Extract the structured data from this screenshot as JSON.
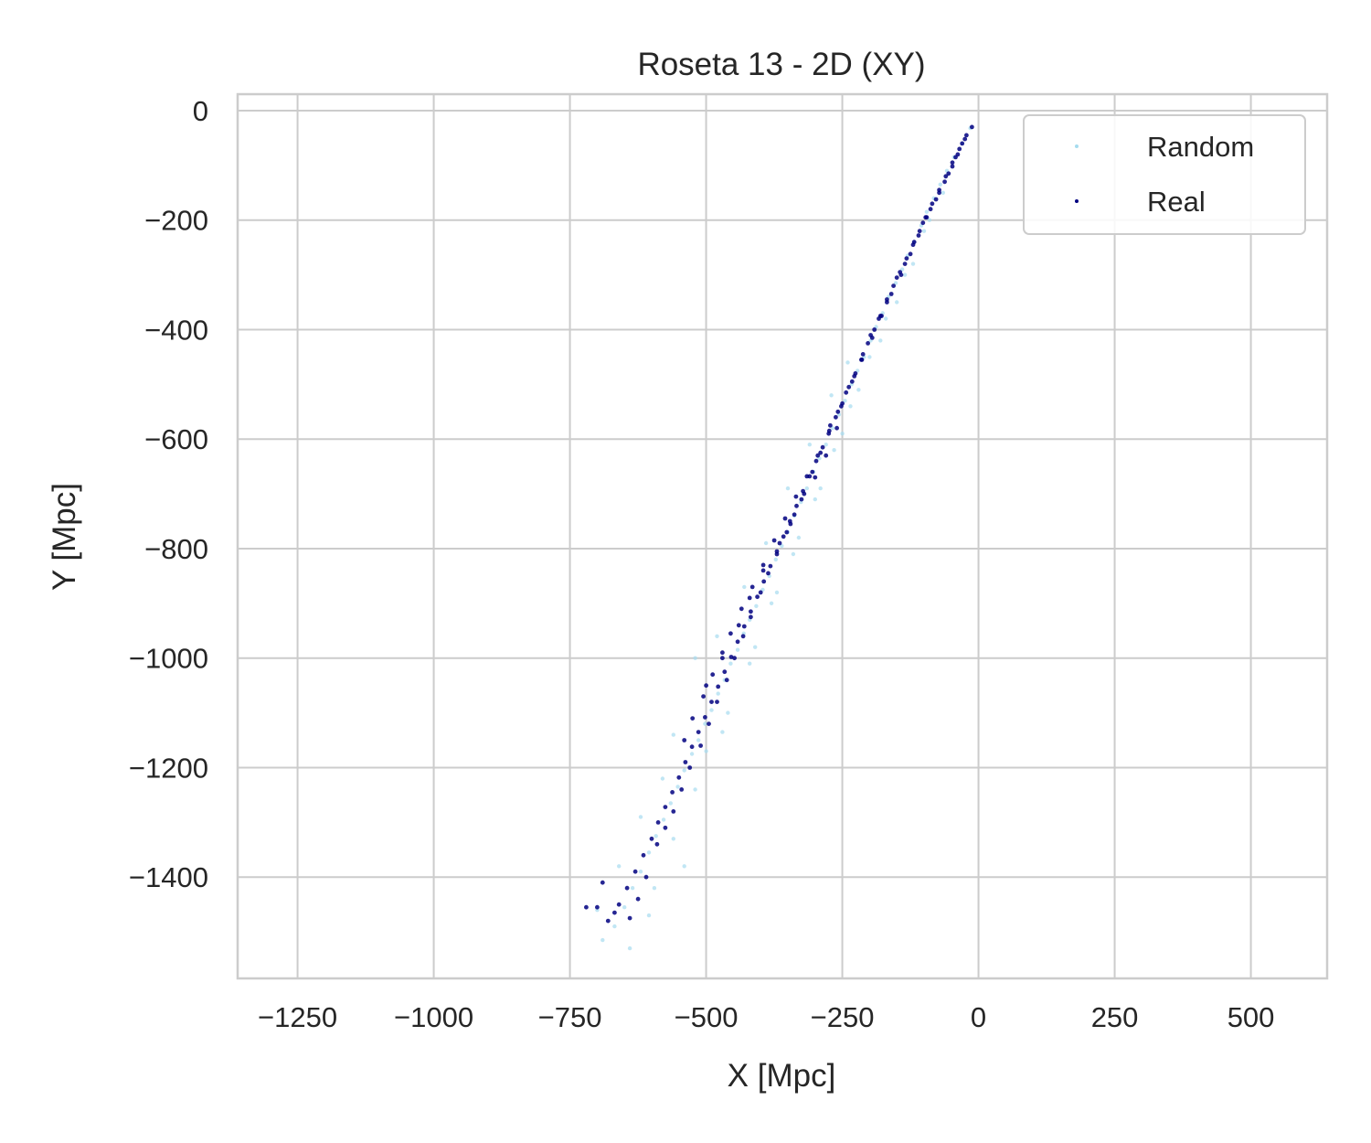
{
  "chart_data": {
    "type": "scatter",
    "title": "Roseta 13 - 2D (XY)",
    "xlabel": "X [Mpc]",
    "ylabel": "Y [Mpc]",
    "xlim": [
      -1360,
      640
    ],
    "ylim": [
      -1585,
      30
    ],
    "xticks": [
      -1250,
      -1000,
      -750,
      -500,
      -250,
      0,
      250,
      500
    ],
    "xtick_labels": [
      "−1250",
      "−1000",
      "−750",
      "−500",
      "−250",
      "0",
      "250",
      "500"
    ],
    "yticks": [
      0,
      -200,
      -400,
      -600,
      -800,
      -1000,
      -1200,
      -1400
    ],
    "ytick_labels": [
      "0",
      "−200",
      "−400",
      "−600",
      "−800",
      "−1000",
      "−1200",
      "−1400"
    ],
    "grid": true,
    "legend_position": "top-right",
    "series": [
      {
        "name": "Random",
        "color": "#a6dcef",
        "points": [
          [
            -15,
            -32
          ],
          [
            -30,
            -60
          ],
          [
            -45,
            -85
          ],
          [
            -58,
            -110
          ],
          [
            -70,
            -135
          ],
          [
            -82,
            -160
          ],
          [
            -95,
            -185
          ],
          [
            -105,
            -210
          ],
          [
            -118,
            -240
          ],
          [
            -130,
            -265
          ],
          [
            -140,
            -290
          ],
          [
            -152,
            -315
          ],
          [
            -165,
            -340
          ],
          [
            -176,
            -370
          ],
          [
            -188,
            -395
          ],
          [
            -198,
            -420
          ],
          [
            -210,
            -450
          ],
          [
            -222,
            -475
          ],
          [
            -233,
            -500
          ],
          [
            -245,
            -530
          ],
          [
            -256,
            -555
          ],
          [
            -268,
            -580
          ],
          [
            -280,
            -610
          ],
          [
            -292,
            -635
          ],
          [
            -303,
            -660
          ],
          [
            -315,
            -690
          ],
          [
            -326,
            -715
          ],
          [
            -338,
            -740
          ],
          [
            -350,
            -770
          ],
          [
            -361,
            -795
          ],
          [
            -372,
            -820
          ],
          [
            -384,
            -850
          ],
          [
            -396,
            -875
          ],
          [
            -408,
            -905
          ],
          [
            -420,
            -930
          ],
          [
            -431,
            -955
          ],
          [
            -442,
            -985
          ],
          [
            -455,
            -1010
          ],
          [
            -466,
            -1040
          ],
          [
            -478,
            -1065
          ],
          [
            -490,
            -1095
          ],
          [
            -502,
            -1120
          ],
          [
            -514,
            -1150
          ],
          [
            -526,
            -1175
          ],
          [
            -540,
            -1205
          ],
          [
            -552,
            -1235
          ],
          [
            -565,
            -1265
          ],
          [
            -578,
            -1295
          ],
          [
            -592,
            -1325
          ],
          [
            -605,
            -1355
          ],
          [
            -620,
            -1390
          ],
          [
            -635,
            -1420
          ],
          [
            -650,
            -1455
          ],
          [
            -668,
            -1490
          ],
          [
            -690,
            -1515
          ],
          [
            -640,
            -1530
          ],
          [
            -605,
            -1470
          ],
          [
            -595,
            -1420
          ],
          [
            -560,
            -1330
          ],
          [
            -520,
            -1240
          ],
          [
            -470,
            -1135
          ],
          [
            -420,
            -1010
          ],
          [
            -380,
            -900
          ],
          [
            -340,
            -810
          ],
          [
            -300,
            -710
          ],
          [
            -265,
            -620
          ],
          [
            -235,
            -540
          ],
          [
            -200,
            -450
          ],
          [
            -170,
            -380
          ],
          [
            -135,
            -300
          ],
          [
            -100,
            -220
          ],
          [
            -65,
            -150
          ],
          [
            -520,
            -1000
          ],
          [
            -480,
            -960
          ],
          [
            -430,
            -870
          ],
          [
            -390,
            -790
          ],
          [
            -350,
            -690
          ],
          [
            -310,
            -610
          ],
          [
            -270,
            -520
          ],
          [
            -240,
            -460
          ],
          [
            -560,
            -1140
          ],
          [
            -580,
            -1220
          ],
          [
            -620,
            -1290
          ],
          [
            -660,
            -1380
          ],
          [
            -700,
            -1460
          ],
          [
            -540,
            -1380
          ],
          [
            -500,
            -1170
          ],
          [
            -460,
            -1100
          ],
          [
            -410,
            -980
          ],
          [
            -370,
            -880
          ],
          [
            -330,
            -780
          ],
          [
            -290,
            -690
          ],
          [
            -250,
            -590
          ],
          [
            -220,
            -510
          ],
          [
            -180,
            -420
          ],
          [
            -150,
            -350
          ],
          [
            -120,
            -280
          ],
          [
            -90,
            -200
          ]
        ]
      },
      {
        "name": "Real",
        "color": "#000080",
        "points": [
          [
            -12,
            -30
          ],
          [
            -22,
            -45
          ],
          [
            -35,
            -70
          ],
          [
            -48,
            -95
          ],
          [
            -60,
            -120
          ],
          [
            -72,
            -145
          ],
          [
            -85,
            -170
          ],
          [
            -97,
            -195
          ],
          [
            -108,
            -220
          ],
          [
            -120,
            -245
          ],
          [
            -132,
            -270
          ],
          [
            -144,
            -295
          ],
          [
            -156,
            -320
          ],
          [
            -168,
            -350
          ],
          [
            -180,
            -375
          ],
          [
            -191,
            -400
          ],
          [
            -203,
            -425
          ],
          [
            -215,
            -455
          ],
          [
            -226,
            -480
          ],
          [
            -238,
            -505
          ],
          [
            -250,
            -535
          ],
          [
            -262,
            -560
          ],
          [
            -274,
            -585
          ],
          [
            -286,
            -615
          ],
          [
            -298,
            -640
          ],
          [
            -310,
            -668
          ],
          [
            -322,
            -695
          ],
          [
            -334,
            -722
          ],
          [
            -346,
            -750
          ],
          [
            -358,
            -778
          ],
          [
            -370,
            -805
          ],
          [
            -382,
            -832
          ],
          [
            -394,
            -860
          ],
          [
            -406,
            -888
          ],
          [
            -418,
            -915
          ],
          [
            -430,
            -942
          ],
          [
            -442,
            -970
          ],
          [
            -454,
            -998
          ],
          [
            -466,
            -1025
          ],
          [
            -478,
            -1052
          ],
          [
            -490,
            -1080
          ],
          [
            -502,
            -1108
          ],
          [
            -514,
            -1135
          ],
          [
            -526,
            -1162
          ],
          [
            -538,
            -1190
          ],
          [
            -550,
            -1218
          ],
          [
            -562,
            -1245
          ],
          [
            -575,
            -1272
          ],
          [
            -588,
            -1300
          ],
          [
            -600,
            -1330
          ],
          [
            -615,
            -1360
          ],
          [
            -630,
            -1390
          ],
          [
            -645,
            -1420
          ],
          [
            -660,
            -1450
          ],
          [
            -680,
            -1480
          ],
          [
            -700,
            -1455
          ],
          [
            -720,
            -1455
          ],
          [
            -690,
            -1410
          ],
          [
            -668,
            -1465
          ],
          [
            -640,
            -1475
          ],
          [
            -625,
            -1440
          ],
          [
            -610,
            -1400
          ],
          [
            -590,
            -1340
          ],
          [
            -575,
            -1310
          ],
          [
            -560,
            -1280
          ],
          [
            -545,
            -1240
          ],
          [
            -530,
            -1200
          ],
          [
            -510,
            -1160
          ],
          [
            -495,
            -1120
          ],
          [
            -480,
            -1080
          ],
          [
            -462,
            -1040
          ],
          [
            -448,
            -1000
          ],
          [
            -432,
            -960
          ],
          [
            -418,
            -925
          ],
          [
            -400,
            -880
          ],
          [
            -386,
            -845
          ],
          [
            -370,
            -810
          ],
          [
            -352,
            -770
          ],
          [
            -338,
            -738
          ],
          [
            -320,
            -700
          ],
          [
            -305,
            -660
          ],
          [
            -290,
            -625
          ],
          [
            -275,
            -590
          ],
          [
            -258,
            -550
          ],
          [
            -243,
            -515
          ],
          [
            -228,
            -485
          ],
          [
            -212,
            -445
          ],
          [
            -198,
            -410
          ],
          [
            -183,
            -380
          ],
          [
            -168,
            -345
          ],
          [
            -150,
            -305
          ],
          [
            -135,
            -280
          ],
          [
            -118,
            -240
          ],
          [
            -102,
            -205
          ],
          [
            -88,
            -180
          ],
          [
            -72,
            -150
          ],
          [
            -55,
            -115
          ],
          [
            -42,
            -85
          ],
          [
            -30,
            -60
          ],
          [
            -500,
            -1050
          ],
          [
            -470,
            -1000
          ],
          [
            -440,
            -940
          ],
          [
            -420,
            -890
          ],
          [
            -395,
            -840
          ],
          [
            -365,
            -790
          ],
          [
            -345,
            -755
          ],
          [
            -325,
            -710
          ],
          [
            -300,
            -670
          ],
          [
            -280,
            -630
          ],
          [
            -260,
            -580
          ],
          [
            -540,
            -1150
          ],
          [
            -525,
            -1110
          ],
          [
            -505,
            -1070
          ],
          [
            -488,
            -1030
          ],
          [
            -470,
            -990
          ],
          [
            -455,
            -955
          ],
          [
            -435,
            -910
          ],
          [
            -415,
            -870
          ],
          [
            -395,
            -830
          ],
          [
            -375,
            -785
          ],
          [
            -355,
            -745
          ],
          [
            -335,
            -705
          ],
          [
            -315,
            -668
          ],
          [
            -295,
            -630
          ],
          [
            -272,
            -575
          ],
          [
            -252,
            -540
          ],
          [
            -232,
            -495
          ],
          [
            -214,
            -455
          ],
          [
            -195,
            -415
          ],
          [
            -178,
            -375
          ],
          [
            -160,
            -335
          ],
          [
            -142,
            -300
          ],
          [
            -125,
            -262
          ],
          [
            -110,
            -228
          ],
          [
            -95,
            -195
          ],
          [
            -78,
            -162
          ],
          [
            -62,
            -130
          ],
          [
            -48,
            -102
          ],
          [
            -38,
            -80
          ],
          [
            -25,
            -52
          ]
        ]
      }
    ]
  }
}
